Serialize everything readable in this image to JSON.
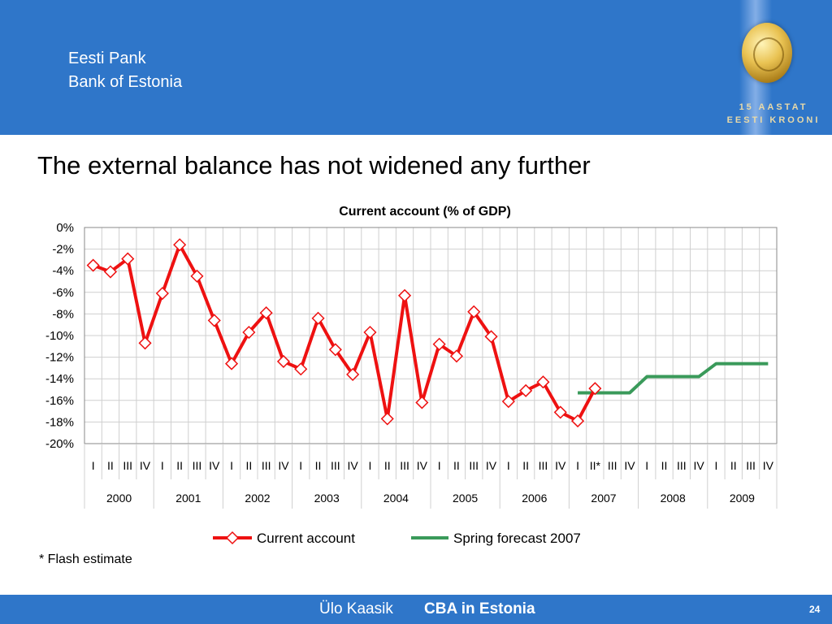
{
  "header": {
    "org_line1": "Eesti Pank",
    "org_line2": "Bank of Estonia",
    "logo_line1": "15 AASTAT",
    "logo_line2": "EESTI KROONI"
  },
  "slide_title": "The external balance has not widened any further",
  "note": "* Flash estimate",
  "footer": {
    "author": "Ülo Kaasik",
    "talk": "CBA in Estonia",
    "page": "24"
  },
  "colors": {
    "header_bg": "#2f76c9",
    "current_account": "#ee1111",
    "forecast": "#3a9a5a"
  },
  "chart_data": {
    "type": "line",
    "title": "Current account (% of GDP)",
    "xlabel": "",
    "ylabel": "",
    "ylim": [
      -20,
      0
    ],
    "yticks": [
      "0%",
      "-2%",
      "-4%",
      "-6%",
      "-8%",
      "-10%",
      "-12%",
      "-14%",
      "-16%",
      "-18%",
      "-20%"
    ],
    "grid": true,
    "legend_position": "bottom",
    "years": [
      "2000",
      "2001",
      "2002",
      "2003",
      "2004",
      "2005",
      "2006",
      "2007",
      "2008",
      "2009"
    ],
    "quarter_labels": [
      "I",
      "II",
      "III",
      "IV",
      "I",
      "II",
      "III",
      "IV",
      "I",
      "II",
      "III",
      "IV",
      "I",
      "II",
      "III",
      "IV",
      "I",
      "II",
      "III",
      "IV",
      "I",
      "II",
      "III",
      "IV",
      "I",
      "II",
      "III",
      "IV",
      "I",
      "II*",
      "III",
      "IV",
      "I",
      "II",
      "III",
      "IV",
      "I",
      "II",
      "III",
      "IV"
    ],
    "series": [
      {
        "name": "Current account",
        "values": [
          -3.5,
          -4.1,
          -2.9,
          -10.7,
          -6.1,
          -1.6,
          -4.5,
          -8.6,
          -12.6,
          -9.7,
          -7.9,
          -12.4,
          -13.1,
          -8.4,
          -11.3,
          -13.6,
          -9.7,
          -17.7,
          -6.3,
          -16.2,
          -10.8,
          -11.9,
          -7.8,
          -10.1,
          -16.1,
          -15.1,
          -14.3,
          -17.1,
          -17.9,
          -14.9
        ]
      },
      {
        "name": "Spring forecast 2007",
        "start_index": 28,
        "values": [
          -15.3,
          -15.3,
          -15.3,
          -15.3,
          -13.8,
          -13.8,
          -13.8,
          -13.8,
          -12.6,
          -12.6,
          -12.6,
          -12.6
        ]
      }
    ]
  }
}
